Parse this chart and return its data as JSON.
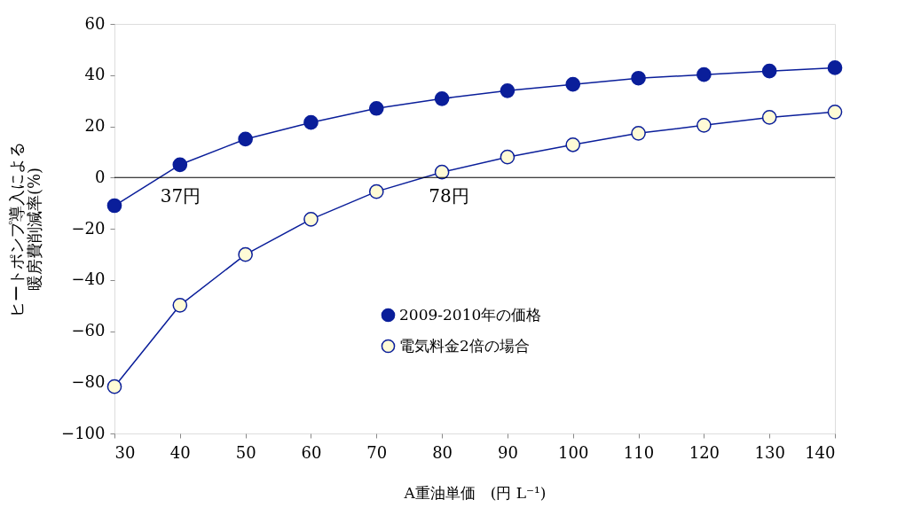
{
  "chart_data": {
    "type": "line",
    "xlabel": "A重油単価　(円 L⁻¹)",
    "ylabel": "ヒートポンプ導入による暖房費削減率(%)",
    "x": [
      30,
      40,
      50,
      60,
      70,
      80,
      90,
      100,
      110,
      120,
      130,
      140
    ],
    "series": [
      {
        "name": "2009-2010年の価格",
        "color": "#0a1e9a",
        "values": [
          -11,
          5,
          15,
          21.5,
          27,
          30.8,
          33.9,
          36.4,
          38.8,
          40.2,
          41.6,
          42.9
        ]
      },
      {
        "name": "電気料金2倍の場合",
        "color": "#0a1e9a",
        "values": [
          -81.7,
          -49.9,
          -30.1,
          -16.3,
          -5.5,
          2.1,
          8.0,
          12.8,
          17.3,
          20.4,
          23.5,
          25.6
        ]
      }
    ],
    "xlim": [
      30,
      140
    ],
    "xticks": [
      30,
      40,
      50,
      60,
      70,
      80,
      90,
      100,
      110,
      120,
      130,
      140
    ],
    "ylim": [
      -100,
      60
    ],
    "yticks": [
      -100,
      -80,
      -60,
      -40,
      -20,
      0,
      20,
      40,
      60
    ],
    "ref_lines": [
      {
        "axis": "y",
        "value": 0,
        "color": "#000000"
      }
    ],
    "annotations": [
      {
        "text": "37円",
        "x": 37,
        "y": 0
      },
      {
        "text": "78円",
        "x": 78,
        "y": 0
      }
    ],
    "grid": false,
    "legend": "bottom",
    "marker": "circle",
    "line_style": "solid"
  }
}
